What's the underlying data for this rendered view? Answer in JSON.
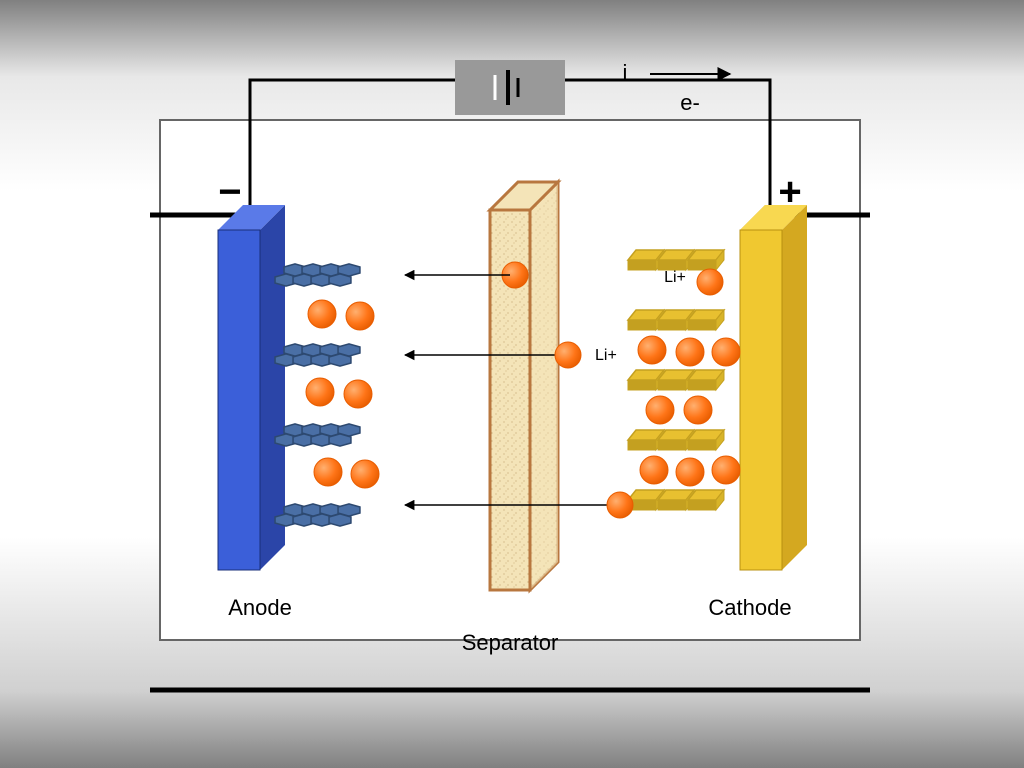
{
  "labels": {
    "anode": "Anode",
    "cathode": "Cathode",
    "separator": "Separator",
    "current": "i",
    "electron": "e-",
    "ion": "Li+",
    "minus": "−",
    "plus": "+"
  },
  "colors": {
    "anode_main": "#3b5fd9",
    "anode_side": "#2b45a8",
    "anode_top": "#5a7ae8",
    "anode_layer": "#4a6fa5",
    "anode_layer_dark": "#2d4970",
    "cathode_main": "#f0c830",
    "cathode_side": "#d4a820",
    "cathode_top": "#f8d850",
    "cathode_layer": "#e8c030",
    "cathode_layer_dark": "#c4a020",
    "separator_fill": "#f4e4b8",
    "separator_border": "#b8773f",
    "ion": "#ff7518",
    "ion_dark": "#e85d00",
    "source_box": "#999999",
    "wire": "#000000",
    "container_border": "#666666",
    "outer_wire": "#000000",
    "text": "#000000"
  },
  "fontsize": {
    "label": 22,
    "symbol": 40,
    "small": 18,
    "ion_label": 16
  }
}
